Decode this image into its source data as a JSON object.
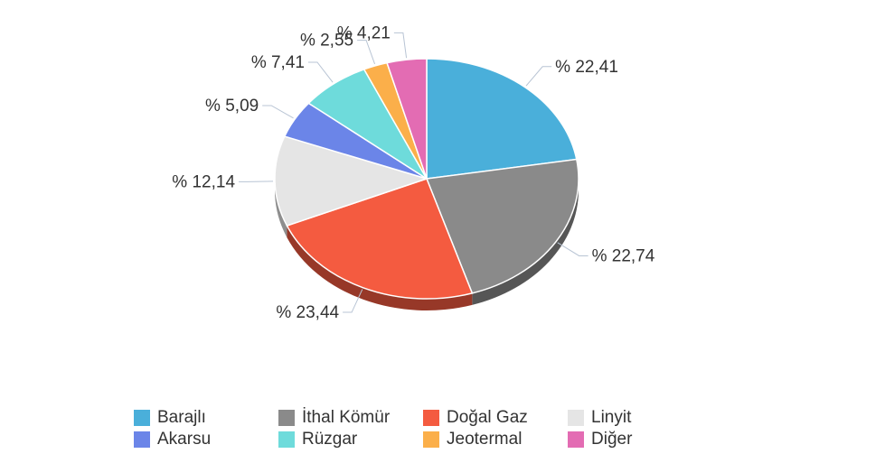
{
  "chart_data": {
    "type": "pie",
    "title": "",
    "slices": [
      {
        "name": "Barajlı",
        "value": 22.41,
        "label": "% 22,41",
        "color": "#4AAFDA"
      },
      {
        "name": "İthal Kömür",
        "value": 22.74,
        "label": "% 22,74",
        "color": "#8A8A8A"
      },
      {
        "name": "Doğal Gaz",
        "value": 23.44,
        "label": "% 23,44",
        "color": "#F45B40"
      },
      {
        "name": "Linyit",
        "value": 12.14,
        "label": "% 12,14",
        "color": "#E5E5E5"
      },
      {
        "name": "Akarsu",
        "value": 5.09,
        "label": "% 5,09",
        "color": "#6B85E8"
      },
      {
        "name": "Rüzgar",
        "value": 7.41,
        "label": "% 7,41",
        "color": "#6EDBDB"
      },
      {
        "name": "Jeotermal",
        "value": 2.55,
        "label": "% 2,55",
        "color": "#FBAF4A"
      },
      {
        "name": "Diğer",
        "value": 4.21,
        "label": "% 4,21",
        "color": "#E36CB3"
      }
    ],
    "legend_position": "bottom"
  }
}
